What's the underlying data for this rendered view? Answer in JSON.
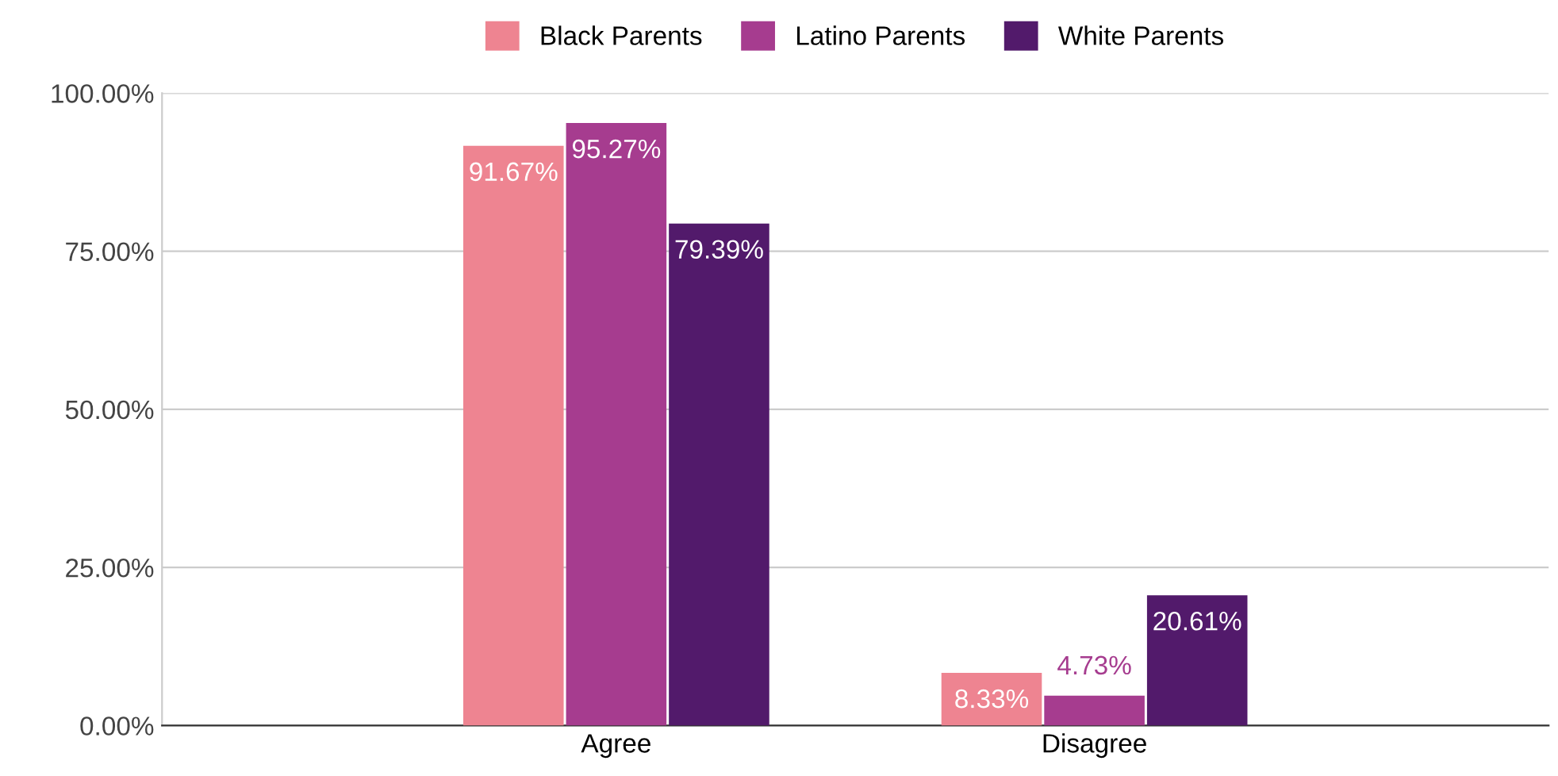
{
  "chart_data": {
    "type": "bar",
    "categories": [
      "Agree",
      "Disagree"
    ],
    "series": [
      {
        "name": "Black Parents",
        "color": "#ee8491",
        "values": [
          91.67,
          8.33
        ],
        "value_labels": [
          "91.67%",
          "8.33%"
        ]
      },
      {
        "name": "Latino Parents",
        "color": "#a63c8f",
        "values": [
          95.27,
          4.73
        ],
        "value_labels": [
          "95.27%",
          "4.73%"
        ]
      },
      {
        "name": "White Parents",
        "color": "#521a6b",
        "values": [
          79.39,
          20.61
        ],
        "value_labels": [
          "79.39%",
          "20.61%"
        ]
      }
    ],
    "ylim": [
      0,
      100
    ],
    "yticks": [
      {
        "value": 0,
        "label": "0.00%"
      },
      {
        "value": 25,
        "label": "25.00%"
      },
      {
        "value": 50,
        "label": "50.00%"
      },
      {
        "value": 75,
        "label": "75.00%"
      },
      {
        "value": 100,
        "label": "100.00%"
      }
    ],
    "grid": "y",
    "legend": "top"
  }
}
